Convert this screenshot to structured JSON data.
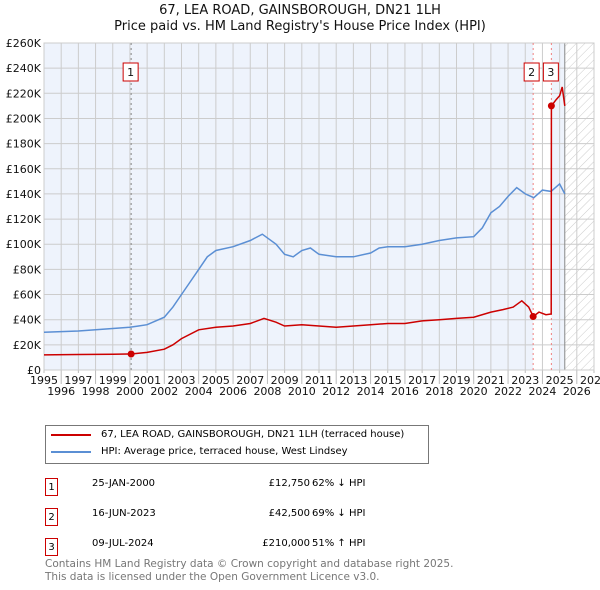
{
  "title": "67, LEA ROAD, GAINSBOROUGH, DN21 1LH",
  "subtitle": "Price paid vs. HM Land Registry's House Price Index (HPI)",
  "chart_data": {
    "type": "line",
    "xlim": [
      1995,
      2027
    ],
    "ylim": [
      0,
      260000
    ],
    "xticks": [
      "1995",
      "1996",
      "1997",
      "1998",
      "1999",
      "2000",
      "2001",
      "2002",
      "2003",
      "2004",
      "2005",
      "2006",
      "2007",
      "2008",
      "2009",
      "2010",
      "2011",
      "2012",
      "2013",
      "2014",
      "2015",
      "2016",
      "2017",
      "2018",
      "2019",
      "2020",
      "2021",
      "2022",
      "2023",
      "2024",
      "2025",
      "2026",
      "2027"
    ],
    "yticks": [
      "£0",
      "£20K",
      "£40K",
      "£60K",
      "£80K",
      "£100K",
      "£120K",
      "£140K",
      "£160K",
      "£180K",
      "£200K",
      "£220K",
      "£240K",
      "£260K"
    ],
    "series": [
      {
        "name": "67, LEA ROAD, GAINSBOROUGH, DN21 1LH (terraced house)",
        "color": "#cc0000",
        "x": [
          1995,
          1997,
          1999,
          2000.07,
          2001,
          2002,
          2002.5,
          2003,
          2004,
          2005,
          2006,
          2007,
          2007.8,
          2008.5,
          2009,
          2010,
          2011,
          2012,
          2013,
          2014,
          2015,
          2016,
          2017,
          2018,
          2019,
          2020,
          2021,
          2021.7,
          2022.3,
          2022.8,
          2023.2,
          2023.46,
          2023.8,
          2024.2,
          2024.51,
          2024.52,
          2024.8,
          2025.0,
          2025.15,
          2025.3
        ],
        "y": [
          12000,
          12300,
          12600,
          12750,
          14000,
          16500,
          20000,
          25000,
          32000,
          34000,
          35000,
          37000,
          41000,
          38000,
          35000,
          36000,
          35000,
          34000,
          35000,
          36000,
          37000,
          37000,
          39000,
          40000,
          41000,
          42000,
          46000,
          48000,
          50000,
          55000,
          50000,
          42500,
          46000,
          44000,
          44500,
          210000,
          215000,
          218000,
          225000,
          210000
        ]
      },
      {
        "name": "HPI: Average price, terraced house, West Lindsey",
        "color": "#5b8fd4",
        "x": [
          1995,
          1996,
          1997,
          1998,
          1999,
          2000,
          2000.5,
          2001,
          2002,
          2002.5,
          2003,
          2003.5,
          2004,
          2004.5,
          2005,
          2006,
          2007,
          2007.7,
          2008.5,
          2009,
          2009.5,
          2010,
          2010.5,
          2011,
          2012,
          2013,
          2014,
          2014.5,
          2015,
          2016,
          2017,
          2018,
          2019,
          2020,
          2020.5,
          2021,
          2021.5,
          2022,
          2022.5,
          2023,
          2023.5,
          2024,
          2024.5,
          2025,
          2025.3
        ],
        "y": [
          30000,
          30500,
          31000,
          32000,
          33000,
          34000,
          35000,
          36000,
          42000,
          50000,
          60000,
          70000,
          80000,
          90000,
          95000,
          98000,
          103000,
          108000,
          100000,
          92000,
          90000,
          95000,
          97000,
          92000,
          90000,
          90000,
          93000,
          97000,
          98000,
          98000,
          100000,
          103000,
          105000,
          106000,
          113000,
          125000,
          130000,
          138000,
          145000,
          140000,
          137000,
          143000,
          142000,
          148000,
          140000
        ]
      }
    ],
    "sales": [
      {
        "label": "1",
        "x": 2000.07,
        "y": 12750
      },
      {
        "label": "2",
        "x": 2023.46,
        "y": 42500
      },
      {
        "label": "3",
        "x": 2024.52,
        "y": 210000
      }
    ]
  },
  "legend": {
    "item1": "67, LEA ROAD, GAINSBOROUGH, DN21 1LH (terraced house)",
    "item2": "HPI: Average price, terraced house, West Lindsey"
  },
  "table": [
    {
      "n": "1",
      "date": "25-JAN-2000",
      "price": "£12,750",
      "hpi": "62% ↓ HPI"
    },
    {
      "n": "2",
      "date": "16-JUN-2023",
      "price": "£42,500",
      "hpi": "69% ↓ HPI"
    },
    {
      "n": "3",
      "date": "09-JUL-2024",
      "price": "£210,000",
      "hpi": "51% ↑ HPI"
    }
  ],
  "footer": {
    "line1": "Contains HM Land Registry data © Crown copyright and database right 2025.",
    "line2": "This data is licensed under the Open Government Licence v3.0."
  }
}
